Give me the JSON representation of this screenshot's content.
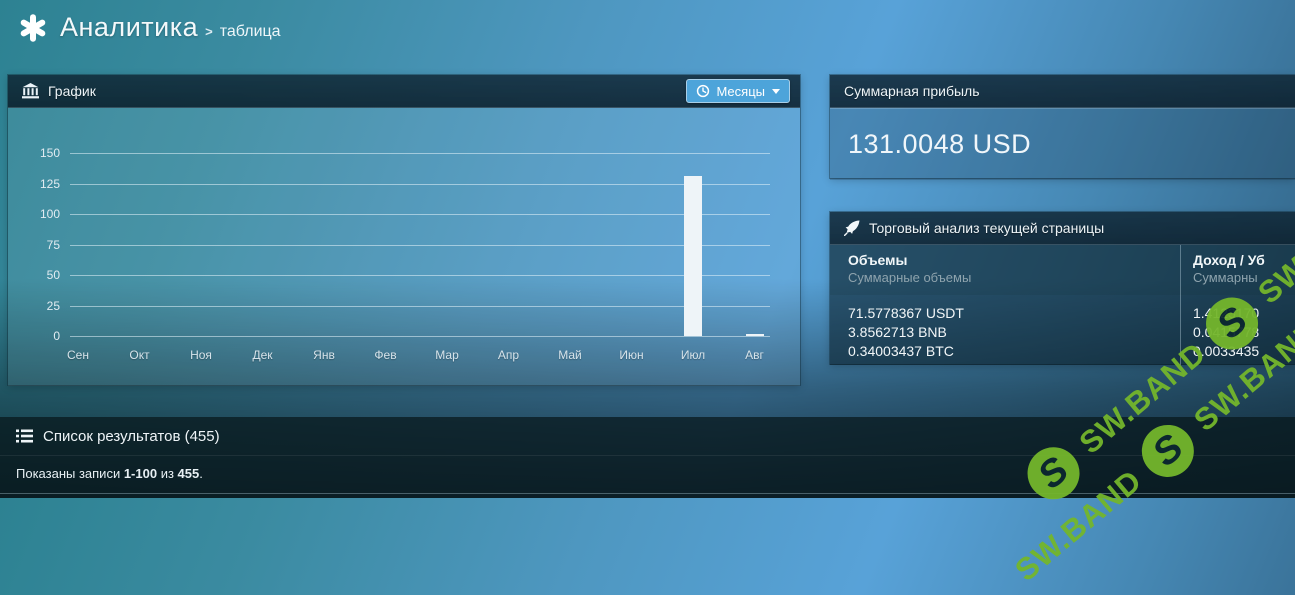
{
  "page": {
    "title": "Аналитика",
    "breadcrumb_separator": ">",
    "breadcrumb": "таблица"
  },
  "chart_panel": {
    "title": "График",
    "period_button_label": "Месяцы"
  },
  "chart_data": {
    "type": "bar",
    "title": "График",
    "categories": [
      "Сен",
      "Окт",
      "Ноя",
      "Дек",
      "Янв",
      "Фев",
      "Мар",
      "Апр",
      "Май",
      "Июн",
      "Июл",
      "Авг"
    ],
    "values": [
      0,
      0,
      0,
      0,
      0,
      0,
      0,
      0,
      0,
      0,
      131,
      2
    ],
    "xlabel": "",
    "ylabel": "",
    "ylim": [
      0,
      150
    ],
    "yticks": [
      0,
      25,
      50,
      75,
      100,
      125,
      150
    ],
    "grid": true,
    "legend": false,
    "bar_color": "#eef4f8"
  },
  "profit_panel": {
    "title": "Суммарная прибыль",
    "value": "131.0048 USD"
  },
  "analysis_panel": {
    "title": "Торговый анализ текущей страницы",
    "columns": [
      {
        "label": "Объемы",
        "sublabel": "Суммарные объемы"
      },
      {
        "label": "Доход / Уб",
        "sublabel": "Суммарны"
      }
    ],
    "volumes": [
      "71.5778367 USDT",
      "3.8562713 BNB",
      "0.34003437 BTC"
    ],
    "profits": [
      "1.4123170",
      "0.0415778",
      "0.0033435"
    ]
  },
  "results_panel": {
    "title": "Список результатов (455)",
    "summary_prefix": "Показаны записи ",
    "summary_range": "1-100",
    "summary_middle": " из ",
    "summary_total": "455",
    "summary_suffix": "."
  },
  "watermark": {
    "text": "SW.BAND",
    "logo_letter": "S",
    "color": "#74b62c"
  },
  "icons": [
    "asterisk-icon",
    "bank-icon",
    "clock-icon",
    "caret-down-icon",
    "rocket-icon",
    "list-icon"
  ]
}
